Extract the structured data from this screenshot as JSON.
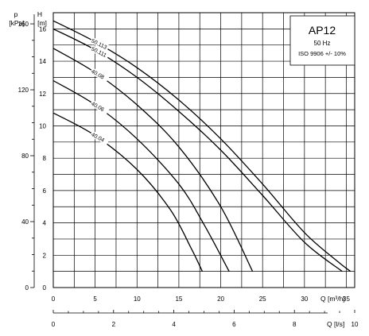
{
  "chart_data": {
    "type": "line",
    "title": "AP12",
    "subtitle_lines": [
      "50 Hz",
      "ISO 9906 +/- 10%"
    ],
    "left_axis": {
      "symbol": "p",
      "unit": "[kPa]",
      "ticks": [
        0,
        40,
        80,
        120,
        160
      ]
    },
    "y_axis": {
      "symbol": "H",
      "unit": "[m]",
      "range": [
        0,
        17
      ],
      "ticks": [
        0,
        2,
        4,
        6,
        8,
        10,
        12,
        14,
        16
      ]
    },
    "x_axis": {
      "label": "Q [m³/h]",
      "range": [
        0,
        36
      ],
      "ticks": [
        0,
        5,
        10,
        15,
        20,
        25,
        30,
        35
      ]
    },
    "x_axis_secondary": {
      "label": "Q [l/s]",
      "ticks": [
        0,
        2,
        4,
        6,
        8,
        10
      ]
    },
    "grid": true,
    "series": [
      {
        "name": "50.113",
        "x": [
          0,
          5,
          10,
          15,
          20,
          25,
          30,
          34,
          35.5
        ],
        "y": [
          16.5,
          15.2,
          13.6,
          11.6,
          9.2,
          6.4,
          3.4,
          1.6,
          1.0
        ]
      },
      {
        "name": "50.111",
        "x": [
          0,
          5,
          10,
          15,
          20,
          25,
          30,
          34.5
        ],
        "y": [
          16.0,
          14.7,
          13.0,
          10.9,
          8.5,
          5.7,
          2.8,
          1.0
        ]
      },
      {
        "name": "40.08",
        "x": [
          0,
          5,
          10,
          15,
          20,
          23.8
        ],
        "y": [
          14.8,
          13.3,
          11.3,
          8.7,
          5.0,
          1.0
        ]
      },
      {
        "name": "40.06",
        "x": [
          0,
          5,
          10,
          15,
          18,
          21
        ],
        "y": [
          12.8,
          11.3,
          9.2,
          6.4,
          3.9,
          1.0
        ]
      },
      {
        "name": "40.04",
        "x": [
          0,
          5,
          10,
          14,
          16.5,
          17.8
        ],
        "y": [
          10.8,
          9.4,
          7.3,
          4.8,
          2.4,
          1.0
        ]
      }
    ]
  }
}
